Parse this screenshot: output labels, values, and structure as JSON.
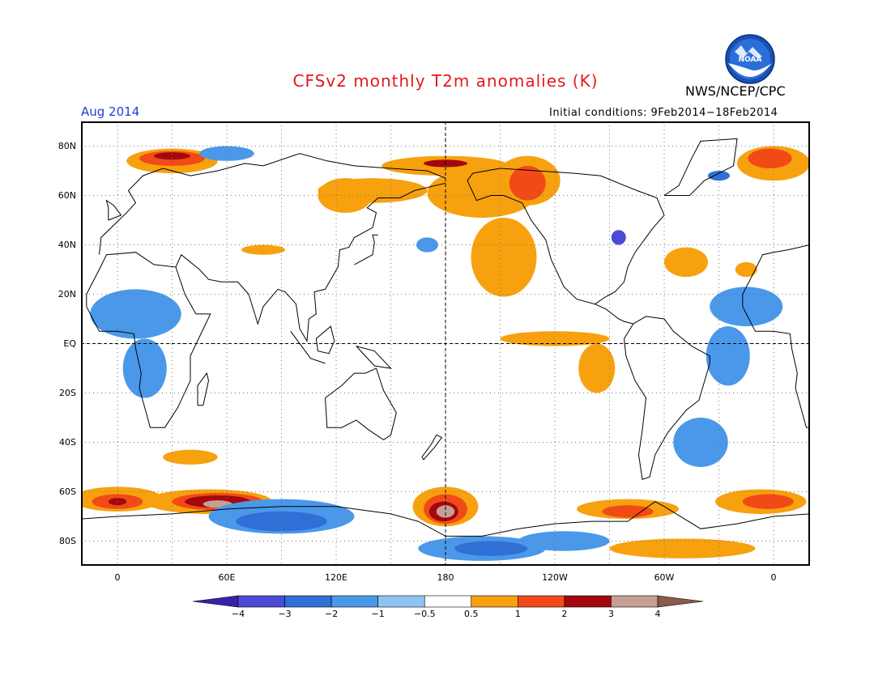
{
  "header": {
    "title": "CFSv2 monthly T2m anomalies (K)",
    "agency": "NWS/NCEP/CPC",
    "month": "Aug 2014",
    "initial_conditions": "Initial conditions: 9Feb2014−18Feb2014",
    "logo_text": "NOAA"
  },
  "axes": {
    "y_ticks": [
      {
        "label": "80N",
        "lat": 80
      },
      {
        "label": "60N",
        "lat": 60
      },
      {
        "label": "40N",
        "lat": 40
      },
      {
        "label": "20N",
        "lat": 20
      },
      {
        "label": "EQ",
        "lat": 0
      },
      {
        "label": "20S",
        "lat": -20
      },
      {
        "label": "40S",
        "lat": -40
      },
      {
        "label": "60S",
        "lat": -60
      },
      {
        "label": "80S",
        "lat": -80
      }
    ],
    "x_ticks": [
      {
        "label": "0",
        "lon": 0
      },
      {
        "label": "60E",
        "lon": 60
      },
      {
        "label": "120E",
        "lon": 120
      },
      {
        "label": "180",
        "lon": 180
      },
      {
        "label": "120W",
        "lon": 240
      },
      {
        "label": "60W",
        "lon": 300
      },
      {
        "label": "0",
        "lon": 360
      }
    ],
    "lon_range": [
      -20,
      380
    ],
    "lat_range": [
      -90,
      90
    ]
  },
  "colorbar": {
    "labels": [
      "−4",
      "−3",
      "−2",
      "−1",
      "−0.5",
      "0.5",
      "1",
      "2",
      "3",
      "4"
    ],
    "colors": [
      "#3a1fa8",
      "#4b4bd6",
      "#2f6fd6",
      "#4a98ea",
      "#8ec4f4",
      "#ffffff",
      "#f7a10f",
      "#f24a17",
      "#a3080f",
      "#c4a095",
      "#8a5a4a"
    ]
  },
  "anomaly_regions": [
    {
      "level": 1,
      "lon": 180,
      "lat": -66,
      "rx": 18,
      "ry": 8
    },
    {
      "level": 2,
      "lon": 180,
      "lat": -67,
      "rx": 12,
      "ry": 6
    },
    {
      "level": 3,
      "lon": 179,
      "lat": -68,
      "rx": 8,
      "ry": 4
    },
    {
      "level": 4,
      "lon": 180,
      "lat": -68,
      "rx": 5,
      "ry": 2.5
    },
    {
      "level": 1,
      "lon": 50,
      "lat": -64,
      "rx": 35,
      "ry": 5
    },
    {
      "level": 2,
      "lon": 55,
      "lat": -64,
      "rx": 25,
      "ry": 3.5
    },
    {
      "level": 3,
      "lon": 55,
      "lat": -64,
      "rx": 18,
      "ry": 2.5
    },
    {
      "level": 4,
      "lon": 55,
      "lat": -65,
      "rx": 8,
      "ry": 1.5
    },
    {
      "level": 1,
      "lon": 0,
      "lat": -63,
      "rx": 25,
      "ry": 5
    },
    {
      "level": 2,
      "lon": 0,
      "lat": -64,
      "rx": 14,
      "ry": 3
    },
    {
      "level": 3,
      "lon": 0,
      "lat": -64,
      "rx": 5,
      "ry": 1.5
    },
    {
      "level": 1,
      "lon": 353,
      "lat": -64,
      "rx": 25,
      "ry": 5
    },
    {
      "level": 2,
      "lon": 357,
      "lat": -64,
      "rx": 14,
      "ry": 3
    },
    {
      "level": 1,
      "lon": 280,
      "lat": -67,
      "rx": 28,
      "ry": 4
    },
    {
      "level": 2,
      "lon": 280,
      "lat": -68,
      "rx": 14,
      "ry": 2.5
    },
    {
      "level": 1,
      "lon": 310,
      "lat": -83,
      "rx": 40,
      "ry": 4
    },
    {
      "level": 1,
      "lon": 40,
      "lat": -46,
      "rx": 15,
      "ry": 3
    },
    {
      "level": -1,
      "lon": 90,
      "lat": -70,
      "rx": 40,
      "ry": 7
    },
    {
      "level": -2,
      "lon": 90,
      "lat": -72,
      "rx": 25,
      "ry": 4
    },
    {
      "level": -1,
      "lon": 200,
      "lat": -83,
      "rx": 35,
      "ry": 5
    },
    {
      "level": -2,
      "lon": 205,
      "lat": -83,
      "rx": 20,
      "ry": 3
    },
    {
      "level": -1,
      "lon": 245,
      "lat": -80,
      "rx": 25,
      "ry": 4
    },
    {
      "level": -1,
      "lon": 320,
      "lat": -40,
      "rx": 15,
      "ry": 10
    },
    {
      "level": -1,
      "lon": 10,
      "lat": 12,
      "rx": 25,
      "ry": 10
    },
    {
      "level": -1,
      "lon": 15,
      "lat": -10,
      "rx": 12,
      "ry": 12
    },
    {
      "level": -1,
      "lon": 345,
      "lat": 15,
      "rx": 20,
      "ry": 8
    },
    {
      "level": -1,
      "lon": 335,
      "lat": -5,
      "rx": 12,
      "ry": 12
    },
    {
      "level": 1,
      "lon": 212,
      "lat": 35,
      "rx": 18,
      "ry": 16
    },
    {
      "level": 1,
      "lon": 200,
      "lat": 61,
      "rx": 30,
      "ry": 10
    },
    {
      "level": 1,
      "lon": 140,
      "lat": 62,
      "rx": 30,
      "ry": 5
    },
    {
      "level": 1,
      "lon": 240,
      "lat": 2,
      "rx": 30,
      "ry": 3
    },
    {
      "level": 1,
      "lon": 263,
      "lat": -10,
      "rx": 10,
      "ry": 10
    },
    {
      "level": 1,
      "lon": 225,
      "lat": 66,
      "rx": 18,
      "ry": 10
    },
    {
      "level": 2,
      "lon": 225,
      "lat": 65,
      "rx": 10,
      "ry": 7
    },
    {
      "level": 1,
      "lon": 180,
      "lat": 72,
      "rx": 35,
      "ry": 4
    },
    {
      "level": 3,
      "lon": 180,
      "lat": 73,
      "rx": 12,
      "ry": 1.5
    },
    {
      "level": 1,
      "lon": 30,
      "lat": 74,
      "rx": 25,
      "ry": 5
    },
    {
      "level": 2,
      "lon": 30,
      "lat": 75,
      "rx": 18,
      "ry": 3
    },
    {
      "level": 3,
      "lon": 30,
      "lat": 76,
      "rx": 10,
      "ry": 1.5
    },
    {
      "level": 1,
      "lon": 360,
      "lat": 73,
      "rx": 20,
      "ry": 7
    },
    {
      "level": 2,
      "lon": 358,
      "lat": 75,
      "rx": 12,
      "ry": 4
    },
    {
      "level": -1,
      "lon": 60,
      "lat": 77,
      "rx": 15,
      "ry": 3
    },
    {
      "level": -2,
      "lon": 330,
      "lat": 68,
      "rx": 6,
      "ry": 2
    },
    {
      "level": -3,
      "lon": 275,
      "lat": 43,
      "rx": 4,
      "ry": 3
    },
    {
      "level": 1,
      "lon": 312,
      "lat": 33,
      "rx": 12,
      "ry": 6
    },
    {
      "level": 1,
      "lon": 80,
      "lat": 38,
      "rx": 12,
      "ry": 2
    },
    {
      "level": 1,
      "lon": 125,
      "lat": 60,
      "rx": 15,
      "ry": 7
    },
    {
      "level": -1,
      "lon": 170,
      "lat": 40,
      "rx": 6,
      "ry": 3
    },
    {
      "level": 1,
      "lon": 345,
      "lat": 30,
      "rx": 6,
      "ry": 3
    }
  ]
}
